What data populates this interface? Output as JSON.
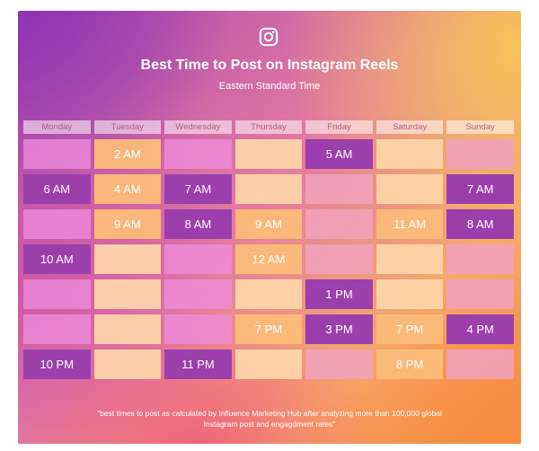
{
  "header": {
    "icon": "instagram-icon",
    "title": "Best Time to Post on Instagram Reels",
    "subtitle": "Eastern Standard Time"
  },
  "days": [
    "Monday",
    "Tuesday",
    "Wednesday",
    "Thursday",
    "Friday",
    "Saturday",
    "Sunday"
  ],
  "rows": [
    [
      {
        "t": "",
        "c": "pink"
      },
      {
        "t": "2 AM",
        "c": "orange"
      },
      {
        "t": "",
        "c": "pink"
      },
      {
        "t": "",
        "c": "peach"
      },
      {
        "t": "5 AM",
        "c": "purple"
      },
      {
        "t": "",
        "c": "peach"
      },
      {
        "t": "",
        "c": "rose"
      }
    ],
    [
      {
        "t": "6 AM",
        "c": "purple"
      },
      {
        "t": "4 AM",
        "c": "orange"
      },
      {
        "t": "7 AM",
        "c": "purple"
      },
      {
        "t": "",
        "c": "peach"
      },
      {
        "t": "",
        "c": "rose"
      },
      {
        "t": "",
        "c": "peach"
      },
      {
        "t": "7 AM",
        "c": "purple"
      }
    ],
    [
      {
        "t": "",
        "c": "pink"
      },
      {
        "t": "9 AM",
        "c": "orange"
      },
      {
        "t": "8 AM",
        "c": "purple"
      },
      {
        "t": "9 AM",
        "c": "orange"
      },
      {
        "t": "",
        "c": "rose"
      },
      {
        "t": "11 AM",
        "c": "orange"
      },
      {
        "t": "8 AM",
        "c": "purple"
      }
    ],
    [
      {
        "t": "10 AM",
        "c": "purple"
      },
      {
        "t": "",
        "c": "peach"
      },
      {
        "t": "",
        "c": "pink"
      },
      {
        "t": "12 AM",
        "c": "orange"
      },
      {
        "t": "",
        "c": "rose"
      },
      {
        "t": "",
        "c": "peach"
      },
      {
        "t": "",
        "c": "rose"
      }
    ],
    [
      {
        "t": "",
        "c": "pink"
      },
      {
        "t": "",
        "c": "peach"
      },
      {
        "t": "",
        "c": "pink"
      },
      {
        "t": "",
        "c": "peach"
      },
      {
        "t": "1 PM",
        "c": "purple"
      },
      {
        "t": "",
        "c": "peach"
      },
      {
        "t": "",
        "c": "rose"
      }
    ],
    [
      {
        "t": "",
        "c": "pink"
      },
      {
        "t": "",
        "c": "peach"
      },
      {
        "t": "",
        "c": "pink"
      },
      {
        "t": "7 PM",
        "c": "orange"
      },
      {
        "t": "3 PM",
        "c": "purple"
      },
      {
        "t": "7 PM",
        "c": "orange"
      },
      {
        "t": "4 PM",
        "c": "purple"
      }
    ],
    [
      {
        "t": "10 PM",
        "c": "purple"
      },
      {
        "t": "",
        "c": "peach"
      },
      {
        "t": "11 PM",
        "c": "purple"
      },
      {
        "t": "",
        "c": "peach"
      },
      {
        "t": "",
        "c": "rose"
      },
      {
        "t": "8 PM",
        "c": "orange"
      },
      {
        "t": "",
        "c": "rose"
      }
    ]
  ],
  "footnote": "\"best times to post as calculated by Influence Marketing Hub after analyzing more than 100,000 global Instagram post and engagdment rates\""
}
